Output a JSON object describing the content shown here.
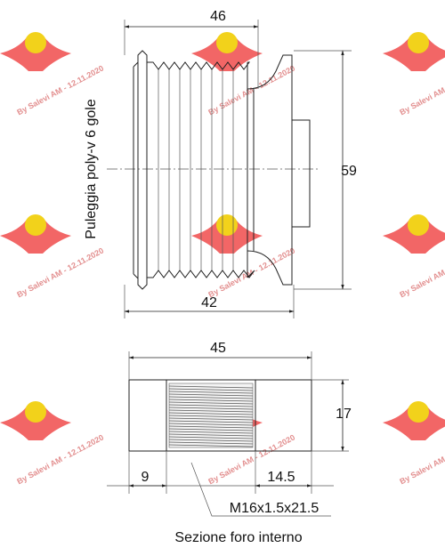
{
  "drawing": {
    "side_label": "Puleggia poly-v 6 gole",
    "dimensions": {
      "top_width": 46,
      "height": 59,
      "bottom_width": 42,
      "section_width": 45,
      "section_height": 17,
      "left_offset": 9,
      "right_offset": 14.5
    },
    "thread": "M16x1.5x21.5",
    "section_caption": "Sezione foro interno",
    "watermark": "By Salevi AM - 12.11.2020"
  }
}
